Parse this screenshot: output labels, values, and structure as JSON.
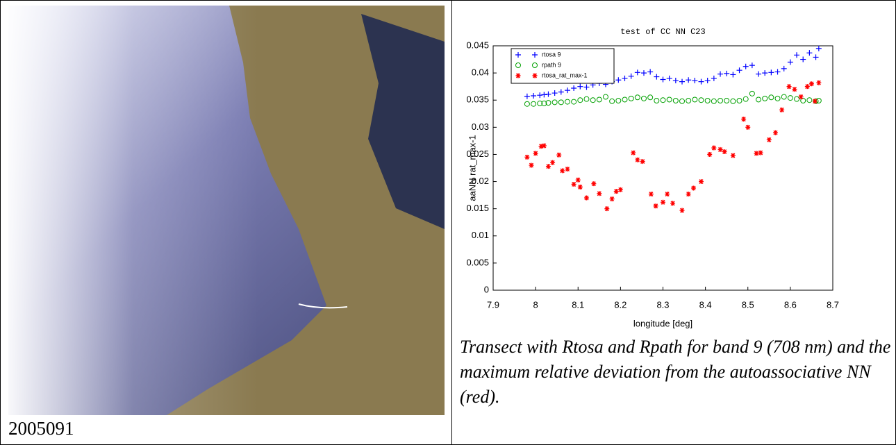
{
  "document": {
    "left_caption": "2005091",
    "right_caption": "Transect with Rtosa and Rpath for band 9 (708 nm) and the maximum relative deviation from the autoassociative NN (red)."
  },
  "chart_data": {
    "type": "scatter",
    "title": "test of CC NN C23",
    "x_label": "longitude [deg]",
    "y_label": "aaNN rat_max-1",
    "xlim": [
      7.9,
      8.7
    ],
    "xticks": [
      7.9,
      8,
      8.1,
      8.2,
      8.3,
      8.4,
      8.5,
      8.6,
      8.7
    ],
    "ylim": [
      0,
      0.045
    ],
    "yticks": [
      0,
      0.005,
      0.01,
      0.015,
      0.02,
      0.025,
      0.03,
      0.035,
      0.04,
      0.045
    ],
    "legend": "upper left",
    "series": [
      {
        "name": "rtosa 9",
        "marker": "plus",
        "color": "#0000ff",
        "x": [
          7.98,
          7.995,
          8.01,
          8.02,
          8.03,
          8.045,
          8.06,
          8.075,
          8.09,
          8.105,
          8.12,
          8.135,
          8.15,
          8.165,
          8.18,
          8.195,
          8.21,
          8.225,
          8.24,
          8.255,
          8.27,
          8.285,
          8.3,
          8.315,
          8.33,
          8.345,
          8.36,
          8.375,
          8.39,
          8.405,
          8.42,
          8.435,
          8.45,
          8.465,
          8.48,
          8.495,
          8.51,
          8.525,
          8.54,
          8.555,
          8.57,
          8.585,
          8.6,
          8.615,
          8.63,
          8.645,
          8.66,
          8.667
        ],
        "values": [
          0.0357,
          0.0358,
          0.0359,
          0.036,
          0.0361,
          0.0363,
          0.0365,
          0.0368,
          0.0372,
          0.0375,
          0.0374,
          0.0378,
          0.0381,
          0.0379,
          0.0384,
          0.0387,
          0.039,
          0.0394,
          0.0401,
          0.04,
          0.0402,
          0.0393,
          0.0388,
          0.039,
          0.0386,
          0.0384,
          0.0387,
          0.0386,
          0.0384,
          0.0386,
          0.039,
          0.0398,
          0.0399,
          0.0397,
          0.0405,
          0.0412,
          0.0414,
          0.0398,
          0.04,
          0.0401,
          0.0402,
          0.0408,
          0.042,
          0.0433,
          0.0425,
          0.0437,
          0.0429,
          0.0445
        ]
      },
      {
        "name": "rpath 9",
        "marker": "circle",
        "color": "#00a000",
        "x": [
          7.98,
          7.995,
          8.01,
          8.02,
          8.03,
          8.045,
          8.06,
          8.075,
          8.09,
          8.105,
          8.12,
          8.135,
          8.15,
          8.165,
          8.18,
          8.195,
          8.21,
          8.225,
          8.24,
          8.255,
          8.27,
          8.285,
          8.3,
          8.315,
          8.33,
          8.345,
          8.36,
          8.375,
          8.39,
          8.405,
          8.42,
          8.435,
          8.45,
          8.465,
          8.48,
          8.495,
          8.51,
          8.525,
          8.54,
          8.555,
          8.57,
          8.585,
          8.6,
          8.615,
          8.63,
          8.645,
          8.66,
          8.667
        ],
        "values": [
          0.0343,
          0.0343,
          0.0344,
          0.0344,
          0.0345,
          0.0346,
          0.0346,
          0.0347,
          0.0347,
          0.035,
          0.0352,
          0.035,
          0.0351,
          0.0356,
          0.0348,
          0.0349,
          0.0351,
          0.0353,
          0.0355,
          0.0353,
          0.0355,
          0.0349,
          0.035,
          0.0351,
          0.0349,
          0.0348,
          0.0349,
          0.0351,
          0.035,
          0.0349,
          0.0348,
          0.0349,
          0.0349,
          0.0348,
          0.0349,
          0.0352,
          0.0362,
          0.0351,
          0.0353,
          0.0355,
          0.0353,
          0.0356,
          0.0354,
          0.0352,
          0.0349,
          0.035,
          0.0348,
          0.0349
        ]
      },
      {
        "name": "rtosa_rat_max-1",
        "marker": "star",
        "color": "#ff0000",
        "x": [
          7.98,
          7.99,
          8.0,
          8.013,
          8.02,
          8.03,
          8.04,
          8.055,
          8.063,
          8.075,
          8.09,
          8.1,
          8.105,
          8.12,
          8.137,
          8.15,
          8.168,
          8.18,
          8.19,
          8.2,
          8.23,
          8.24,
          8.252,
          8.272,
          8.283,
          8.3,
          8.31,
          8.323,
          8.345,
          8.36,
          8.372,
          8.39,
          8.41,
          8.42,
          8.435,
          8.445,
          8.465,
          8.49,
          8.5,
          8.52,
          8.53,
          8.55,
          8.565,
          8.58,
          8.597,
          8.61,
          8.625,
          8.64,
          8.65,
          8.658,
          8.667
        ],
        "values": [
          0.0245,
          0.023,
          0.0252,
          0.0265,
          0.0266,
          0.0228,
          0.0235,
          0.0249,
          0.022,
          0.0223,
          0.0195,
          0.0203,
          0.019,
          0.017,
          0.0196,
          0.0178,
          0.015,
          0.0168,
          0.0182,
          0.0185,
          0.0253,
          0.024,
          0.0237,
          0.0177,
          0.0155,
          0.0162,
          0.0177,
          0.016,
          0.0147,
          0.0177,
          0.0188,
          0.02,
          0.025,
          0.0262,
          0.0259,
          0.0255,
          0.0248,
          0.0315,
          0.03,
          0.0252,
          0.0253,
          0.0277,
          0.029,
          0.0332,
          0.0375,
          0.037,
          0.0356,
          0.0375,
          0.038,
          0.0348,
          0.0382
        ]
      }
    ]
  }
}
